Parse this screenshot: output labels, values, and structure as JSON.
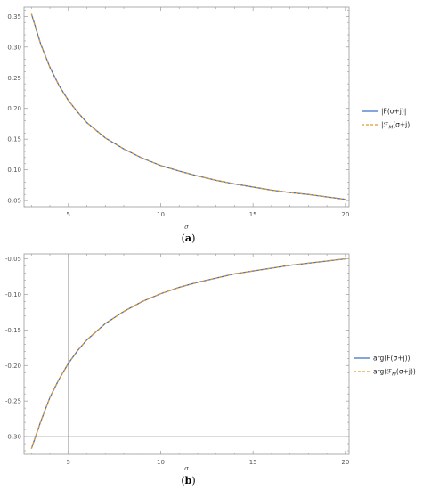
{
  "colors": {
    "series1": "#3f6fc6",
    "series2": "#e19a2a",
    "refline": "#a0a0a0",
    "frame": "#999999"
  },
  "chart_data": [
    {
      "type": "line",
      "xlabel": "σ",
      "ylabel": "",
      "caption_letter": "a",
      "xlim": [
        2.6,
        20.2
      ],
      "ylim": [
        0.04,
        0.365
      ],
      "xticks": [
        5,
        10,
        15,
        20
      ],
      "xtick_labels": [
        "5",
        "10",
        "15",
        "20"
      ],
      "yticks": [
        0.05,
        0.1,
        0.15,
        0.2,
        0.25,
        0.3,
        0.35
      ],
      "ytick_labels": [
        "0.05",
        "0.10",
        "0.15",
        "0.20",
        "0.25",
        "0.30",
        "0.35"
      ],
      "grid": false,
      "legend_position": "right",
      "ref_lines": [],
      "x": [
        3,
        3.5,
        4,
        4.5,
        5,
        5.5,
        6,
        7,
        8,
        9,
        10,
        11,
        12,
        13,
        14,
        15,
        16,
        17,
        18,
        19,
        20
      ],
      "series": [
        {
          "name": "|F(σ+j)|",
          "style": "solid",
          "values": [
            0.354,
            0.305,
            0.267,
            0.237,
            0.213,
            0.194,
            0.177,
            0.152,
            0.134,
            0.119,
            0.107,
            0.098,
            0.09,
            0.083,
            0.077,
            0.072,
            0.067,
            0.063,
            0.06,
            0.056,
            0.052
          ]
        },
        {
          "name": "|ℱ_M(σ+j)|",
          "style": "dashed",
          "values": [
            0.354,
            0.305,
            0.267,
            0.237,
            0.213,
            0.194,
            0.177,
            0.152,
            0.134,
            0.119,
            0.107,
            0.098,
            0.09,
            0.083,
            0.077,
            0.072,
            0.067,
            0.063,
            0.06,
            0.056,
            0.052
          ]
        }
      ]
    },
    {
      "type": "line",
      "xlabel": "σ",
      "ylabel": "",
      "caption_letter": "b",
      "xlim": [
        2.6,
        20.2
      ],
      "ylim": [
        -0.325,
        -0.043
      ],
      "xticks": [
        5,
        10,
        15,
        20
      ],
      "xtick_labels": [
        "5",
        "10",
        "15",
        "20"
      ],
      "yticks": [
        -0.3,
        -0.25,
        -0.2,
        -0.15,
        -0.1,
        -0.05
      ],
      "ytick_labels": [
        "-0.30",
        "-0.25",
        "-0.20",
        "-0.15",
        "-0.10",
        "-0.05"
      ],
      "grid": false,
      "legend_position": "right",
      "ref_lines": [
        {
          "axis": "x",
          "value": 5
        },
        {
          "axis": "y",
          "value": -0.3
        }
      ],
      "x": [
        3,
        3.5,
        4,
        4.5,
        5,
        5.5,
        6,
        7,
        8,
        9,
        10,
        11,
        12,
        13,
        14,
        15,
        16,
        17,
        18,
        19,
        20
      ],
      "series": [
        {
          "name": "arg(F(σ+j))",
          "style": "solid",
          "values": [
            -0.317,
            -0.279,
            -0.245,
            -0.219,
            -0.197,
            -0.179,
            -0.164,
            -0.141,
            -0.124,
            -0.11,
            -0.099,
            -0.09,
            -0.083,
            -0.077,
            -0.071,
            -0.067,
            -0.063,
            -0.059,
            -0.056,
            -0.053,
            -0.05
          ]
        },
        {
          "name": "arg(ℱ_M(σ+j))",
          "style": "dashed",
          "values": [
            -0.317,
            -0.279,
            -0.245,
            -0.219,
            -0.197,
            -0.179,
            -0.164,
            -0.141,
            -0.124,
            -0.11,
            -0.099,
            -0.09,
            -0.083,
            -0.077,
            -0.071,
            -0.067,
            -0.063,
            -0.059,
            -0.056,
            -0.053,
            -0.05
          ]
        }
      ]
    }
  ]
}
